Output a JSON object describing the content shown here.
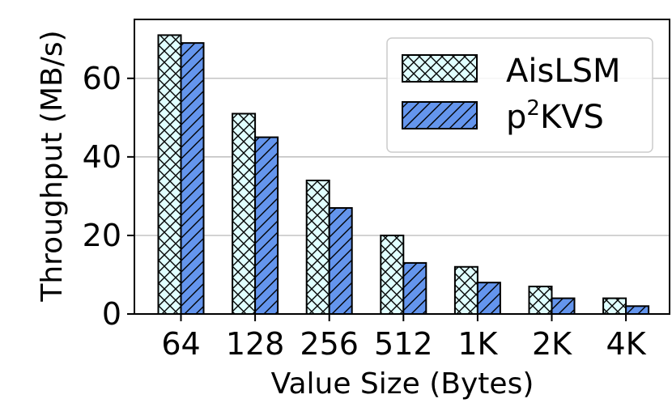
{
  "chart_data": {
    "type": "bar",
    "title": "",
    "xlabel": "Value Size (Bytes)",
    "ylabel": "Throughput (MB/s)",
    "categories": [
      "64",
      "128",
      "256",
      "512",
      "1K",
      "2K",
      "4K"
    ],
    "ylim": [
      0,
      75
    ],
    "yticks": [
      0,
      20,
      40,
      60
    ],
    "grid": "horizontal",
    "legend_position": "top-right",
    "series": [
      {
        "name": "AisLSM",
        "legend_text": "AisLSM",
        "values": [
          71,
          51,
          34,
          20,
          12,
          7,
          4
        ],
        "color": "#e0ffff",
        "hatch": "crosshatch"
      },
      {
        "name": "p2KVS",
        "legend_base": "p",
        "legend_sup": "2",
        "legend_rest": "KVS",
        "values": [
          69,
          45,
          27,
          13,
          8,
          4,
          2
        ],
        "color": "#6495ed",
        "hatch": "diagonal"
      }
    ]
  }
}
